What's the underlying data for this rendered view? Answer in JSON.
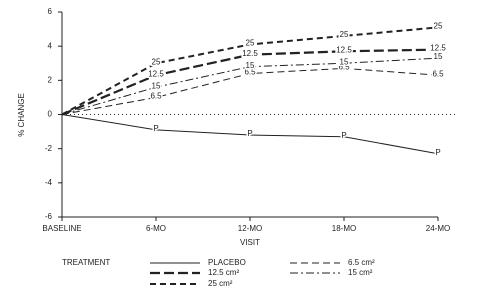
{
  "chart_data": {
    "type": "line",
    "x_label": "VISIT",
    "y_label": "% CHANGE",
    "legend_title": "TREATMENT",
    "categories": [
      "BASELINE",
      "6-MO",
      "12-MO",
      "18-MO",
      "24-MO"
    ],
    "ylim": [
      -6,
      6
    ],
    "yticks": [
      -6,
      -4,
      -2,
      0,
      2,
      4,
      6
    ],
    "zero_line": true,
    "series": [
      {
        "name": "PLACEBO",
        "point_label": "P",
        "color": "#222",
        "width": 1,
        "dash": "none",
        "values": [
          0,
          -0.9,
          -1.2,
          -1.3,
          -2.3
        ]
      },
      {
        "name": "6.5 cm²",
        "point_label": "6.5",
        "color": "#222",
        "width": 1,
        "dash": "7,4",
        "values": [
          0,
          1.0,
          2.4,
          2.7,
          2.3
        ]
      },
      {
        "name": "12.5 cm²",
        "point_label": "12.5",
        "color": "#222",
        "width": 2.2,
        "dash": "10,4",
        "values": [
          0,
          2.3,
          3.5,
          3.7,
          3.8
        ]
      },
      {
        "name": "15 cm²",
        "point_label": "15",
        "color": "#222",
        "width": 1,
        "dash": "8,3,2,3",
        "values": [
          0,
          1.6,
          2.8,
          3.0,
          3.3
        ]
      },
      {
        "name": "25 cm²",
        "point_label": "25",
        "color": "#222",
        "width": 2,
        "dash": "6,4",
        "values": [
          0,
          3.0,
          4.1,
          4.6,
          5.1
        ]
      }
    ]
  }
}
